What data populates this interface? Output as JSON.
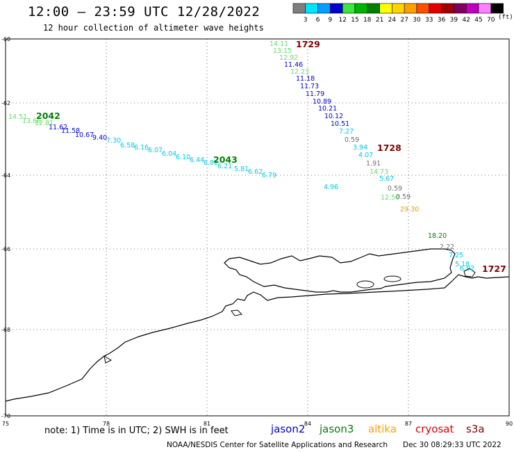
{
  "header": {
    "title": "12:00 – 23:59 UTC 12/28/2022",
    "subtitle": "12 hour collection of altimeter wave heights"
  },
  "colorbar": {
    "ticks": [
      "3",
      "6",
      "9",
      "12",
      "15",
      "18",
      "21",
      "24",
      "27",
      "30",
      "33",
      "36",
      "39",
      "42",
      "45",
      "70"
    ],
    "units": "(ft)",
    "colors": [
      "#7f7f7f",
      "#00e5ff",
      "#00a0ff",
      "#0000d0",
      "#3ce63c",
      "#00b400",
      "#008000",
      "#ffff00",
      "#ffd400",
      "#ffa000",
      "#ff5000",
      "#e00000",
      "#a00000",
      "#800060",
      "#c000c0",
      "#ff80ff",
      "#000000"
    ]
  },
  "map": {
    "lat_labels": [
      "-60",
      "-62",
      "-64",
      "-66",
      "-68",
      "-70"
    ],
    "lon_labels": [
      "75",
      "78",
      "81",
      "84",
      "87",
      "90"
    ]
  },
  "passes": [
    {
      "id": "2042",
      "color": "#008000"
    },
    {
      "id": "2043",
      "color": "#008000"
    },
    {
      "id": "1729",
      "color": "#800000"
    },
    {
      "id": "1728",
      "color": "#800000"
    },
    {
      "id": "1727",
      "color": "#800000"
    }
  ],
  "observations": [
    {
      "v": "14.51",
      "c": "#66dd66"
    },
    {
      "v": "13.66",
      "c": "#66dd66"
    },
    {
      "v": "12.81",
      "c": "#66dd66"
    },
    {
      "v": "11.62",
      "c": "#0000d0"
    },
    {
      "v": "11.58",
      "c": "#0000d0"
    },
    {
      "v": "10.67",
      "c": "#0000d0"
    },
    {
      "v": "9.40",
      "c": "#0000d0"
    },
    {
      "v": "7.30",
      "c": "#00c8e6"
    },
    {
      "v": "6.58",
      "c": "#00c8e6"
    },
    {
      "v": "6.16",
      "c": "#00c8e6"
    },
    {
      "v": "6.07",
      "c": "#00c8e6"
    },
    {
      "v": "6.04",
      "c": "#00c8e6"
    },
    {
      "v": "6.10",
      "c": "#00c8e6"
    },
    {
      "v": "6.44",
      "c": "#00c8e6"
    },
    {
      "v": "6.82",
      "c": "#00c8e6"
    },
    {
      "v": "6.21",
      "c": "#00c8e6"
    },
    {
      "v": "5.81",
      "c": "#00c8e6"
    },
    {
      "v": "6.62",
      "c": "#00c8e6"
    },
    {
      "v": "6.79",
      "c": "#00c8e6"
    },
    {
      "v": "14.11",
      "c": "#66dd66"
    },
    {
      "v": "13.15",
      "c": "#66dd66"
    },
    {
      "v": "12.92",
      "c": "#66dd66"
    },
    {
      "v": "11.46",
      "c": "#0000d0"
    },
    {
      "v": "12.23",
      "c": "#66dd66"
    },
    {
      "v": "11.18",
      "c": "#0000d0"
    },
    {
      "v": "11.73",
      "c": "#0000d0"
    },
    {
      "v": "11.79",
      "c": "#0000d0"
    },
    {
      "v": "10.89",
      "c": "#0000d0"
    },
    {
      "v": "10.21",
      "c": "#0000d0"
    },
    {
      "v": "10.12",
      "c": "#0000d0"
    },
    {
      "v": "10.51",
      "c": "#0000d0"
    },
    {
      "v": "7.27",
      "c": "#00c8e6"
    },
    {
      "v": "0.59",
      "c": "#707070"
    },
    {
      "v": "3.94",
      "c": "#00c8e6"
    },
    {
      "v": "4.07",
      "c": "#00c8e6"
    },
    {
      "v": "1.91",
      "c": "#707070"
    },
    {
      "v": "14.73",
      "c": "#66dd66"
    },
    {
      "v": "5.67",
      "c": "#00c8e6"
    },
    {
      "v": "4.96",
      "c": "#00c8e6"
    },
    {
      "v": "0.59",
      "c": "#707070"
    },
    {
      "v": "12.50",
      "c": "#66dd66"
    },
    {
      "v": "0.59",
      "c": "#707070"
    },
    {
      "v": "29.30",
      "c": "#e0a000"
    },
    {
      "v": "18.20",
      "c": "#008000"
    },
    {
      "v": "2.22",
      "c": "#707070"
    },
    {
      "v": "7.25",
      "c": "#00c8e6"
    },
    {
      "v": "5.18",
      "c": "#00c8e6"
    },
    {
      "v": "6.92",
      "c": "#00c8e6"
    }
  ],
  "footer": {
    "note": "note: 1) Time is in UTC; 2) SWH is in feet",
    "satellites": [
      {
        "name": "jason2",
        "color": "#0000d0"
      },
      {
        "name": "jason3",
        "color": "#008000"
      },
      {
        "name": "altika",
        "color": "#ffa000"
      },
      {
        "name": "cryosat",
        "color": "#e00000"
      },
      {
        "name": "s3a",
        "color": "#800000"
      }
    ],
    "credit": "NOAA/NESDIS Center for Satellite Applications and Research",
    "timestamp": "Dec 30 08:29:33 UTC 2022"
  }
}
